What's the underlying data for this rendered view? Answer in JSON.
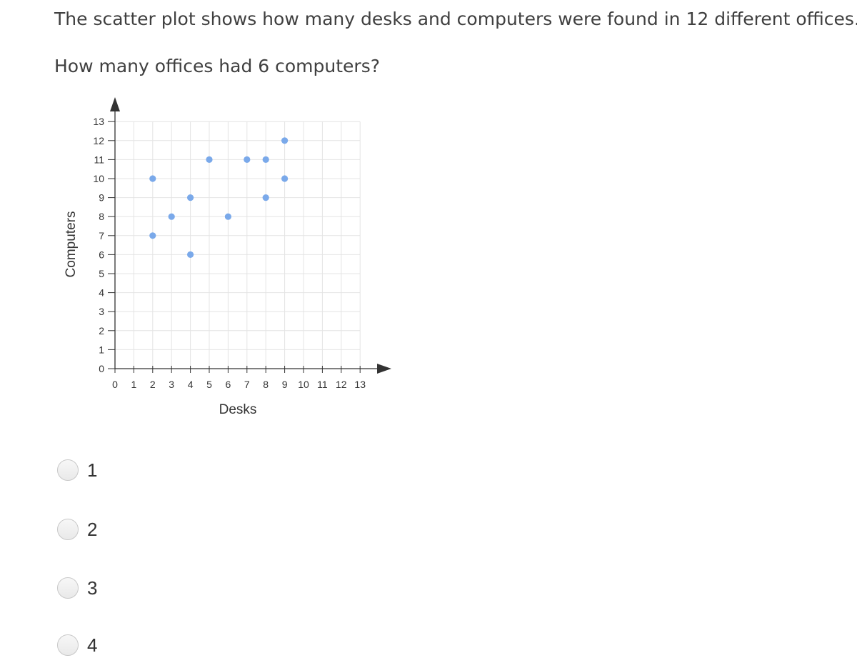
{
  "question": {
    "intro": "The scatter plot shows how many desks and computers were found in 12 different offices.",
    "prompt": "How many offices had 6 computers?"
  },
  "chart_data": {
    "type": "scatter",
    "xlabel": "Desks",
    "ylabel": "Computers",
    "xlim": [
      0,
      13
    ],
    "ylim": [
      0,
      13
    ],
    "x_ticks": [
      0,
      1,
      2,
      3,
      4,
      5,
      6,
      7,
      8,
      9,
      10,
      11,
      12,
      13
    ],
    "y_ticks": [
      0,
      1,
      2,
      3,
      4,
      5,
      6,
      7,
      8,
      9,
      10,
      11,
      12,
      13
    ],
    "grid": true,
    "point_color": "#7aa9ea",
    "points": [
      {
        "x": 2,
        "y": 10
      },
      {
        "x": 2,
        "y": 7
      },
      {
        "x": 3,
        "y": 8
      },
      {
        "x": 4,
        "y": 9
      },
      {
        "x": 4,
        "y": 6
      },
      {
        "x": 5,
        "y": 11
      },
      {
        "x": 6,
        "y": 8
      },
      {
        "x": 7,
        "y": 11
      },
      {
        "x": 8,
        "y": 11
      },
      {
        "x": 8,
        "y": 9
      },
      {
        "x": 9,
        "y": 12
      },
      {
        "x": 9,
        "y": 10
      }
    ]
  },
  "choices": [
    {
      "label": "1"
    },
    {
      "label": "2"
    },
    {
      "label": "3"
    },
    {
      "label": "4"
    }
  ]
}
